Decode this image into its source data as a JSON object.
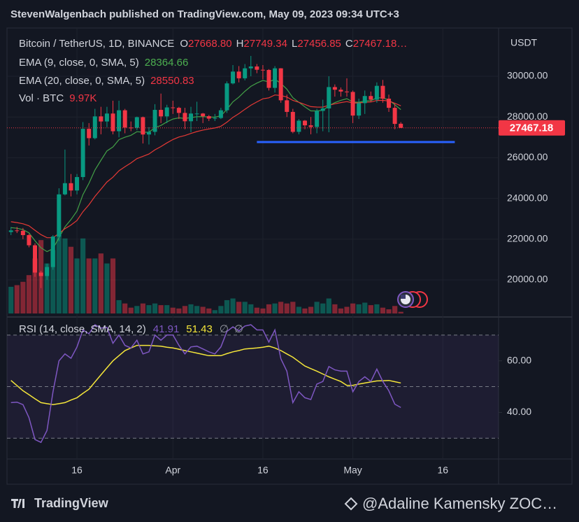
{
  "chart_data": {
    "type": "candlestick",
    "header": "StevenWalgenbach published on TradingView.com, May 09, 2023 09:34 UTC+3",
    "symbol": "Bitcoin / TetherUS, 1D, BINANCE",
    "ohlc_letters": [
      "O",
      "H",
      "L",
      "C"
    ],
    "last_labels": [
      "27668.80",
      "27749.34",
      "27456.85",
      "27467.18…"
    ],
    "currency": "USDT",
    "open": [
      22350,
      22430,
      22410,
      22200,
      21700,
      20360,
      20190,
      20630,
      22130,
      24200,
      24750,
      24390,
      25050,
      27420,
      26960,
      28030,
      27780,
      28170,
      27300,
      28330,
      27480,
      27470,
      27990,
      27140,
      27270,
      28350,
      28030,
      28470,
      28450,
      28200,
      27790,
      28170,
      28170,
      28040,
      27920,
      27950,
      28330,
      29650,
      30230,
      29900,
      30390,
      30480,
      30320,
      30310,
      29430,
      30390,
      28820,
      28250,
      27270,
      27820,
      27590,
      27510,
      28300,
      28420,
      29470,
      29340,
      29250,
      29230,
      28070,
      28680,
      29030,
      28850,
      29530,
      28900,
      28450,
      27668.8
    ],
    "high": [
      22600,
      22600,
      22550,
      22250,
      21800,
      20450,
      20800,
      22200,
      24500,
      26400,
      25200,
      25200,
      27750,
      27700,
      28400,
      28500,
      28500,
      28800,
      28800,
      28400,
      27780,
      28020,
      28020,
      27500,
      28630,
      29150,
      28600,
      28800,
      28500,
      28450,
      28500,
      28750,
      28200,
      28100,
      28150,
      28450,
      29750,
      30550,
      30500,
      30600,
      31000,
      30600,
      30550,
      30350,
      30500,
      30400,
      29100,
      28400,
      27900,
      27850,
      28000,
      28400,
      28850,
      30000,
      29600,
      29450,
      29900,
      29300,
      28900,
      29300,
      29250,
      29700,
      29820,
      29100,
      28650,
      27749.34
    ],
    "low": [
      22200,
      22300,
      22000,
      21600,
      20150,
      19600,
      20000,
      20500,
      21900,
      24150,
      24100,
      24200,
      24900,
      26600,
      26900,
      27150,
      27500,
      27150,
      27000,
      27200,
      27300,
      27350,
      26700,
      26650,
      27100,
      27700,
      27700,
      28150,
      27900,
      27400,
      27250,
      27800,
      27700,
      27800,
      27800,
      27900,
      28200,
      29600,
      29700,
      29800,
      30000,
      30150,
      29850,
      29300,
      29200,
      28700,
      28000,
      27200,
      27150,
      27400,
      27150,
      27200,
      27300,
      27250,
      29000,
      29000,
      29000,
      27700,
      27900,
      28150,
      28750,
      28700,
      28700,
      28250,
      27400,
      27456.85
    ],
    "close": [
      22430,
      22410,
      22200,
      21700,
      20360,
      20190,
      20630,
      22130,
      24200,
      24750,
      24390,
      25050,
      27420,
      26960,
      28030,
      27780,
      28170,
      27300,
      28330,
      27480,
      27470,
      27990,
      27140,
      27270,
      28350,
      28030,
      28470,
      28450,
      28200,
      27790,
      28170,
      28170,
      28040,
      27920,
      27950,
      28330,
      29650,
      30230,
      29900,
      30390,
      30480,
      30320,
      30310,
      29430,
      30390,
      28820,
      28250,
      27270,
      27820,
      27590,
      27510,
      28300,
      28420,
      29470,
      29340,
      29250,
      29230,
      28070,
      28680,
      29030,
      28850,
      29530,
      28900,
      28450,
      27660,
      27467.18
    ],
    "up_color": "#089981",
    "down_color": "#f23645",
    "xlim": [
      -0.2,
      81.3
    ],
    "xticks": [
      {
        "value": 11,
        "label": "16"
      },
      {
        "value": 27,
        "label": "Apr"
      },
      {
        "value": 42,
        "label": "16"
      },
      {
        "value": 57,
        "label": "May"
      },
      {
        "value": 72,
        "label": "16"
      }
    ],
    "ylim": [
      18282,
      32371
    ],
    "yticks": [
      {
        "value": 20000,
        "label": "20000.00"
      },
      {
        "value": 22000,
        "label": "22000.00"
      },
      {
        "value": 24000,
        "label": "24000.00"
      },
      {
        "value": 26000,
        "label": "26000.00"
      },
      {
        "value": 28000,
        "label": "28000.00"
      },
      {
        "value": 30000,
        "label": "30000.00"
      }
    ],
    "series": [
      {
        "name": "EMA (9, close, 0, SMA, 5)",
        "color": "#43a047",
        "value_color": "#4caf50",
        "values": [
          22566,
          22535,
          22468,
          22314,
          21923,
          21576,
          21387,
          21536,
          22069,
          22605,
          22962,
          23380,
          24188,
          24742,
          25400,
          25876,
          26335,
          26528,
          26888,
          27006,
          27099,
          27277,
          27250,
          27254,
          27473,
          27584,
          27761,
          27899,
          27959,
          27925,
          27974,
          28013,
          28018,
          27999,
          27989,
          28057,
          28376,
          28747,
          28977,
          29260,
          29504,
          29667,
          29796,
          29723,
          29856,
          29649,
          29369,
          28949,
          28723,
          28497,
          28299,
          28299,
          28323,
          28553,
          28710,
          28818,
          28900,
          28734,
          28724,
          28785,
          28798,
          28944,
          28936,
          28838,
          28603,
          28364.66
        ]
      },
      {
        "name": "EMA (20, close, 0, SMA, 5)",
        "color": "#e53935",
        "value_color": "#f23645",
        "values": [
          22855,
          22813,
          22755,
          22655,
          22436,
          22222,
          22071,
          22076,
          22279,
          22514,
          22693,
          22917,
          23346,
          23690,
          24103,
          24453,
          24807,
          25044,
          25357,
          25559,
          25741,
          25955,
          26068,
          26182,
          26388,
          26545,
          26728,
          26892,
          27017,
          27090,
          27193,
          27286,
          27358,
          27411,
          27462,
          27545,
          27745,
          27982,
          28165,
          28377,
          28577,
          28743,
          28892,
          28943,
          29081,
          29056,
          28979,
          28817,
          28722,
          28614,
          28509,
          28489,
          28483,
          28577,
          28650,
          28707,
          28757,
          28692,
          28691,
          28723,
          28735,
          28811,
          28819,
          28784,
          28677,
          28550.83
        ]
      }
    ],
    "volume": {
      "name": "Vol · BTC",
      "last_value_label": "9.97K",
      "values": [
        160000,
        170000,
        190000,
        230000,
        330000,
        440000,
        300000,
        380000,
        470000,
        450000,
        400000,
        330000,
        450000,
        330000,
        330000,
        360000,
        300000,
        330000,
        80000,
        60000,
        35000,
        45000,
        60000,
        50000,
        60000,
        50000,
        50000,
        35000,
        30000,
        45000,
        55000,
        45000,
        40000,
        30000,
        20000,
        45000,
        80000,
        90000,
        70000,
        70000,
        55000,
        35000,
        30000,
        55000,
        60000,
        70000,
        60000,
        70000,
        40000,
        30000,
        40000,
        70000,
        60000,
        90000,
        55000,
        30000,
        40000,
        60000,
        55000,
        65000,
        50000,
        55000,
        35000,
        25000,
        45000,
        9970
      ]
    },
    "horizontal_line": {
      "value": 26770,
      "x": [
        41,
        74
      ],
      "color": "#2962ff"
    },
    "rsi": {
      "name": "RSI (14, close, SMA, 14, 2)",
      "color": "#7e57c2",
      "ma_color": "#f5e63a",
      "values": [
        43.8,
        44,
        43,
        38,
        29.5,
        28.4,
        33,
        48,
        60,
        62.7,
        61,
        65.4,
        72,
        70.5,
        74,
        72.7,
        73,
        66.8,
        70,
        66,
        65,
        68,
        62.7,
        63.5,
        70,
        68,
        70,
        70,
        66,
        62.7,
        65.4,
        65.7,
        64.6,
        63.5,
        62.7,
        65.4,
        71.4,
        73.2,
        71.6,
        73.5,
        74,
        72,
        72,
        67.3,
        72,
        60.8,
        56,
        43.8,
        48,
        45.7,
        45,
        51,
        52,
        57.8,
        56.5,
        56,
        56,
        48,
        52,
        53.8,
        52,
        56.8,
        52,
        48.4,
        43.2,
        41.91
      ],
      "ma_values": [
        52.4,
        50.4,
        48.4,
        46.9,
        45.3,
        43.8,
        43.4,
        43,
        43.4,
        43.8,
        44.8,
        45.7,
        47.4,
        49,
        51.8,
        54.6,
        57.3,
        60,
        62,
        64,
        65,
        66,
        66,
        66,
        65.8,
        65.7,
        65.3,
        65,
        64.5,
        64,
        63.5,
        63,
        62.5,
        62,
        62,
        62,
        62.8,
        63.5,
        64,
        64.6,
        64.8,
        65,
        65.3,
        65.7,
        65,
        64,
        62.7,
        61.4,
        59.7,
        58,
        57,
        56,
        54.9,
        53.8,
        52.9,
        52,
        50.5,
        50.5,
        51,
        51.4,
        51.8,
        52.2,
        52.3,
        52.4,
        51.9,
        51.43
      ],
      "extras": [
        "∅",
        "∅"
      ],
      "ylim": [
        22.2,
        76.2
      ],
      "yticks": [
        {
          "value": 40,
          "label": "40.00"
        },
        {
          "value": 60,
          "label": "60.00"
        }
      ],
      "bands": [
        30,
        50,
        70
      ]
    },
    "footer_logo": "TradingView",
    "watermark": "@Adaline Kamensky ZOC…"
  }
}
